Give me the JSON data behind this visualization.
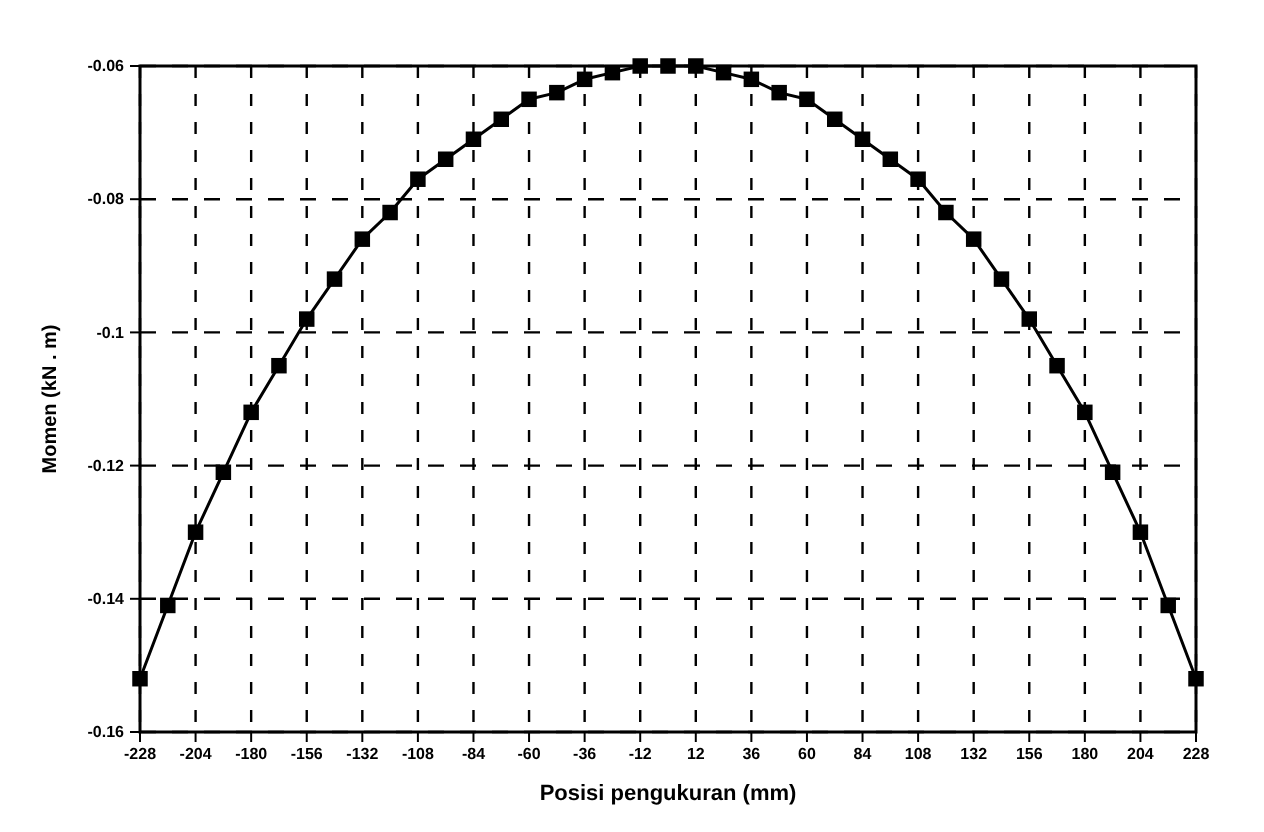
{
  "chart_data": {
    "type": "line",
    "xlabel": "Posisi pengukuran (mm)",
    "ylabel": "Momen (kN . m)",
    "x": [
      -228,
      -216,
      -204,
      -192,
      -180,
      -168,
      -156,
      -144,
      -132,
      -120,
      -108,
      -96,
      -84,
      -72,
      -60,
      -48,
      -36,
      -24,
      -12,
      0,
      12,
      24,
      36,
      48,
      60,
      72,
      84,
      96,
      108,
      120,
      132,
      144,
      156,
      168,
      180,
      192,
      204,
      216,
      228
    ],
    "series": [
      {
        "color": "#000000",
        "values": [
          -0.152,
          -0.141,
          -0.13,
          -0.121,
          -0.112,
          -0.105,
          -0.098,
          -0.092,
          -0.086,
          -0.082,
          -0.077,
          -0.074,
          -0.071,
          -0.068,
          -0.065,
          -0.064,
          -0.062,
          -0.061,
          -0.06,
          -0.06,
          -0.06,
          -0.061,
          -0.062,
          -0.064,
          -0.065,
          -0.068,
          -0.071,
          -0.074,
          -0.077,
          -0.082,
          -0.086,
          -0.092,
          -0.098,
          -0.105,
          -0.112,
          -0.121,
          -0.13,
          -0.141,
          -0.152
        ]
      }
    ],
    "xlim": [
      -228,
      228
    ],
    "xticks": [
      -228,
      -204,
      -180,
      -156,
      -132,
      -108,
      -84,
      -60,
      -36,
      -12,
      12,
      36,
      60,
      84,
      108,
      132,
      156,
      180,
      204,
      228
    ],
    "ylim": [
      -0.16,
      -0.06
    ],
    "yticks": [
      -0.16,
      -0.14,
      -0.12,
      -0.1,
      -0.08,
      -0.06
    ],
    "grid": true,
    "marker": "square",
    "line_style": "solid"
  }
}
